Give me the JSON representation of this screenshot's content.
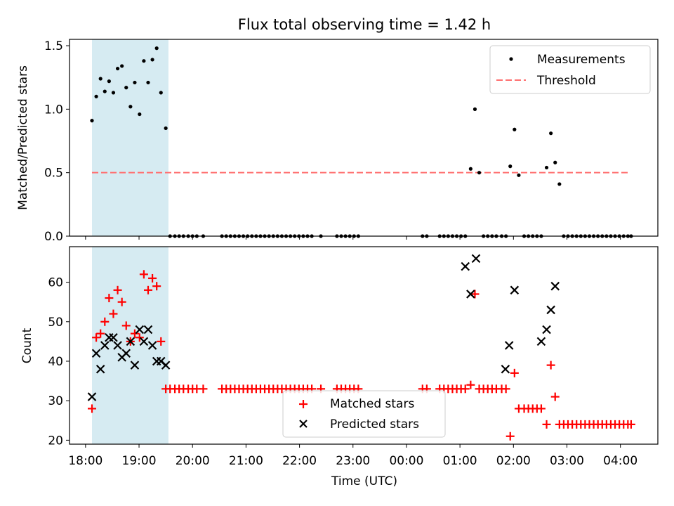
{
  "chart_data": [
    {
      "type": "scatter",
      "title": "Flux total observing time = 1.42 h",
      "xlabel": "",
      "ylabel": "Matched/Predicted stars",
      "xlim_hours": [
        17.7,
        28.7
      ],
      "ylim": [
        0,
        1.55
      ],
      "yticks": [
        0.0,
        0.5,
        1.0,
        1.5
      ],
      "ytick_labels": [
        "0.0",
        "0.5",
        "1.0",
        "1.5"
      ],
      "legend": {
        "position": "top-right",
        "entries": [
          {
            "label": "Measurements",
            "marker": "dot",
            "color": "#000000"
          },
          {
            "label": "Threshold",
            "marker": "dashed-line",
            "color": "#ff7070"
          }
        ]
      },
      "highlight_span_hours": [
        18.12,
        19.55
      ],
      "threshold": {
        "value": 0.5,
        "x_hours": [
          18.12,
          28.15
        ]
      },
      "series": [
        {
          "name": "Measurements",
          "x_hours": [
            18.12,
            18.2,
            18.28,
            18.36,
            18.44,
            18.52,
            18.6,
            18.68,
            18.76,
            18.84,
            18.92,
            19.01,
            19.09,
            19.17,
            19.25,
            19.33,
            19.41,
            19.5,
            19.58,
            19.67,
            19.75,
            19.83,
            19.92,
            20.0,
            20.08,
            20.2,
            20.55,
            20.63,
            20.71,
            20.79,
            20.87,
            20.95,
            21.03,
            21.11,
            21.19,
            21.27,
            21.35,
            21.43,
            21.51,
            21.59,
            21.67,
            21.75,
            21.83,
            21.91,
            21.99,
            22.07,
            22.15,
            22.23,
            22.4,
            22.7,
            22.78,
            22.86,
            22.94,
            23.02,
            23.1,
            24.3,
            24.38,
            24.62,
            24.7,
            24.78,
            24.86,
            24.94,
            25.02,
            25.1,
            25.2,
            25.28,
            25.36,
            25.44,
            25.52,
            25.6,
            25.68,
            25.78,
            25.86,
            25.94,
            26.02,
            26.1,
            26.2,
            26.28,
            26.36,
            26.44,
            26.52,
            26.62,
            26.7,
            26.78,
            26.86,
            26.94,
            27.02,
            27.1,
            27.18,
            27.26,
            27.34,
            27.42,
            27.5,
            27.58,
            27.66,
            27.74,
            27.82,
            27.9,
            27.98,
            28.06,
            28.14,
            28.2
          ],
          "y": [
            0.91,
            1.1,
            1.24,
            1.14,
            1.22,
            1.13,
            1.32,
            1.34,
            1.17,
            1.02,
            1.21,
            0.96,
            1.38,
            1.21,
            1.39,
            1.48,
            1.13,
            0.85,
            0,
            0,
            0,
            0,
            0,
            0,
            0,
            0,
            0,
            0,
            0,
            0,
            0,
            0,
            0,
            0,
            0,
            0,
            0,
            0,
            0,
            0,
            0,
            0,
            0,
            0,
            0,
            0,
            0,
            0,
            0,
            0,
            0,
            0,
            0,
            0,
            0,
            0,
            0,
            0,
            0,
            0,
            0,
            0,
            0,
            0,
            0.53,
            1.0,
            0.5,
            0,
            0,
            0,
            0,
            0,
            0,
            0.55,
            0.84,
            0.48,
            0,
            0,
            0,
            0,
            0,
            0.54,
            0.81,
            0.58,
            0.41,
            0,
            0,
            0,
            0,
            0,
            0,
            0,
            0,
            0,
            0,
            0,
            0,
            0,
            0,
            0,
            0,
            0
          ]
        }
      ]
    },
    {
      "type": "scatter",
      "title": "",
      "xlabel": "Time (UTC)",
      "ylabel": "Count",
      "xlim_hours": [
        17.7,
        28.7
      ],
      "ylim": [
        19,
        69
      ],
      "yticks": [
        20,
        30,
        40,
        50,
        60
      ],
      "ytick_labels": [
        "20",
        "30",
        "40",
        "50",
        "60"
      ],
      "xticks_hours": [
        18,
        19,
        20,
        21,
        22,
        23,
        24,
        25,
        26,
        27,
        28
      ],
      "xtick_labels": [
        "18:00",
        "19:00",
        "20:00",
        "21:00",
        "22:00",
        "23:00",
        "00:00",
        "01:00",
        "02:00",
        "03:00",
        "04:00"
      ],
      "legend": {
        "position": "lower-center",
        "entries": [
          {
            "label": "Matched stars",
            "marker": "plus",
            "color": "#ff0000"
          },
          {
            "label": "Predicted stars",
            "marker": "x",
            "color": "#000000"
          }
        ]
      },
      "highlight_span_hours": [
        18.12,
        19.55
      ],
      "series": [
        {
          "name": "Matched stars",
          "marker": "plus",
          "color": "#ff0000",
          "x_hours": [
            18.12,
            18.2,
            18.28,
            18.36,
            18.44,
            18.52,
            18.6,
            18.68,
            18.76,
            18.84,
            18.92,
            19.01,
            19.09,
            19.17,
            19.25,
            19.33,
            19.41,
            19.5,
            19.58,
            19.67,
            19.75,
            19.83,
            19.92,
            20.0,
            20.08,
            20.2,
            20.55,
            20.63,
            20.71,
            20.79,
            20.87,
            20.95,
            21.03,
            21.11,
            21.19,
            21.27,
            21.35,
            21.43,
            21.51,
            21.59,
            21.67,
            21.75,
            21.83,
            21.91,
            21.99,
            22.07,
            22.15,
            22.23,
            22.4,
            22.7,
            22.78,
            22.86,
            22.94,
            23.02,
            23.1,
            24.3,
            24.38,
            24.62,
            24.7,
            24.78,
            24.86,
            24.94,
            25.02,
            25.1,
            25.2,
            25.28,
            25.36,
            25.44,
            25.52,
            25.6,
            25.68,
            25.78,
            25.86,
            25.94,
            26.02,
            26.1,
            26.2,
            26.28,
            26.36,
            26.44,
            26.52,
            26.62,
            26.7,
            26.78,
            26.86,
            26.94,
            27.02,
            27.1,
            27.18,
            27.26,
            27.34,
            27.42,
            27.5,
            27.58,
            27.66,
            27.74,
            27.82,
            27.9,
            27.98,
            28.06,
            28.14,
            28.2
          ],
          "y": [
            28,
            46,
            47,
            50,
            56,
            52,
            58,
            55,
            49,
            45,
            47,
            46,
            62,
            58,
            61,
            59,
            45,
            33,
            33,
            33,
            33,
            33,
            33,
            33,
            33,
            33,
            33,
            33,
            33,
            33,
            33,
            33,
            33,
            33,
            33,
            33,
            33,
            33,
            33,
            33,
            33,
            33,
            33,
            33,
            33,
            33,
            33,
            33,
            33,
            33,
            33,
            33,
            33,
            33,
            33,
            33,
            33,
            33,
            33,
            33,
            33,
            33,
            33,
            33,
            34,
            57,
            33,
            33,
            33,
            33,
            33,
            33,
            33,
            21,
            37,
            28,
            28,
            28,
            28,
            28,
            28,
            24,
            39,
            31,
            24,
            24,
            24,
            24,
            24,
            24,
            24,
            24,
            24,
            24,
            24,
            24,
            24,
            24,
            24,
            24,
            24,
            24
          ]
        },
        {
          "name": "Predicted stars",
          "marker": "x",
          "color": "#000000",
          "x_hours": [
            18.12,
            18.2,
            18.28,
            18.36,
            18.44,
            18.52,
            18.6,
            18.68,
            18.76,
            18.84,
            18.92,
            19.01,
            19.09,
            19.17,
            19.25,
            19.33,
            19.41,
            19.5,
            25.1,
            25.2,
            25.3,
            25.85,
            25.92,
            26.02,
            26.52,
            26.62,
            26.7,
            26.78
          ],
          "y": [
            31,
            42,
            38,
            44,
            46,
            46,
            44,
            41,
            42,
            45,
            39,
            48,
            45,
            48,
            44,
            40,
            40,
            39,
            64,
            57,
            66,
            38,
            44,
            58,
            45,
            48,
            53,
            59
          ]
        }
      ]
    }
  ]
}
